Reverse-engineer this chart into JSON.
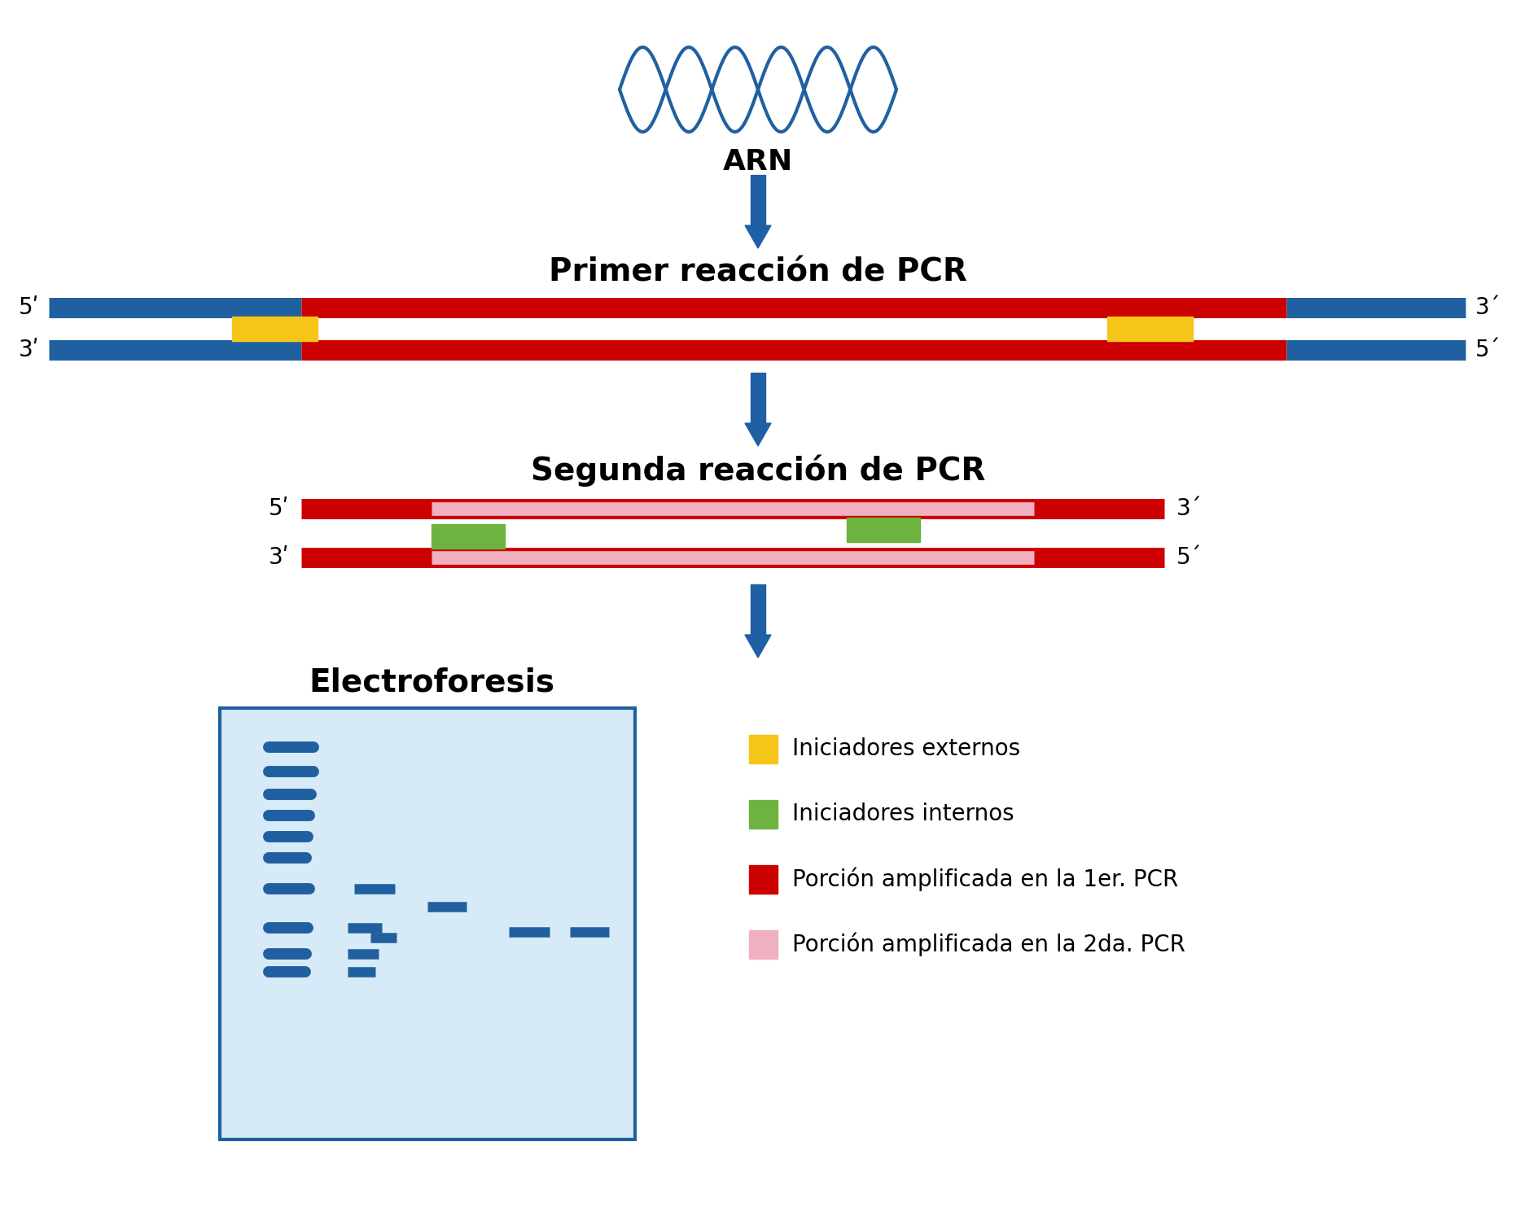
{
  "bg_color": "#ffffff",
  "title_pcr1": "Primer reacción de PCR",
  "title_pcr2": "Segunda reacción de PCR",
  "title_electro": "Electroforesis",
  "arn_label": "ARN",
  "arrow_color": "#1F5FA6",
  "dna_blue": "#2060A0",
  "dna_red": "#CC0000",
  "dna_pink": "#F0B0C0",
  "primer_yellow": "#F5C518",
  "primer_green": "#6DB33F",
  "legend_items": [
    {
      "color": "#F5C518",
      "label": "Iniciadores externos"
    },
    {
      "color": "#6DB33F",
      "label": "Iniciadores internos"
    },
    {
      "color": "#CC0000",
      "label": "Porción amplificada en la 1er. PCR"
    },
    {
      "color": "#F0B0C0",
      "label": "Porción amplificada en la 2da. PCR"
    }
  ],
  "gel_bg": "#D6EAF8",
  "gel_border": "#2060A0"
}
